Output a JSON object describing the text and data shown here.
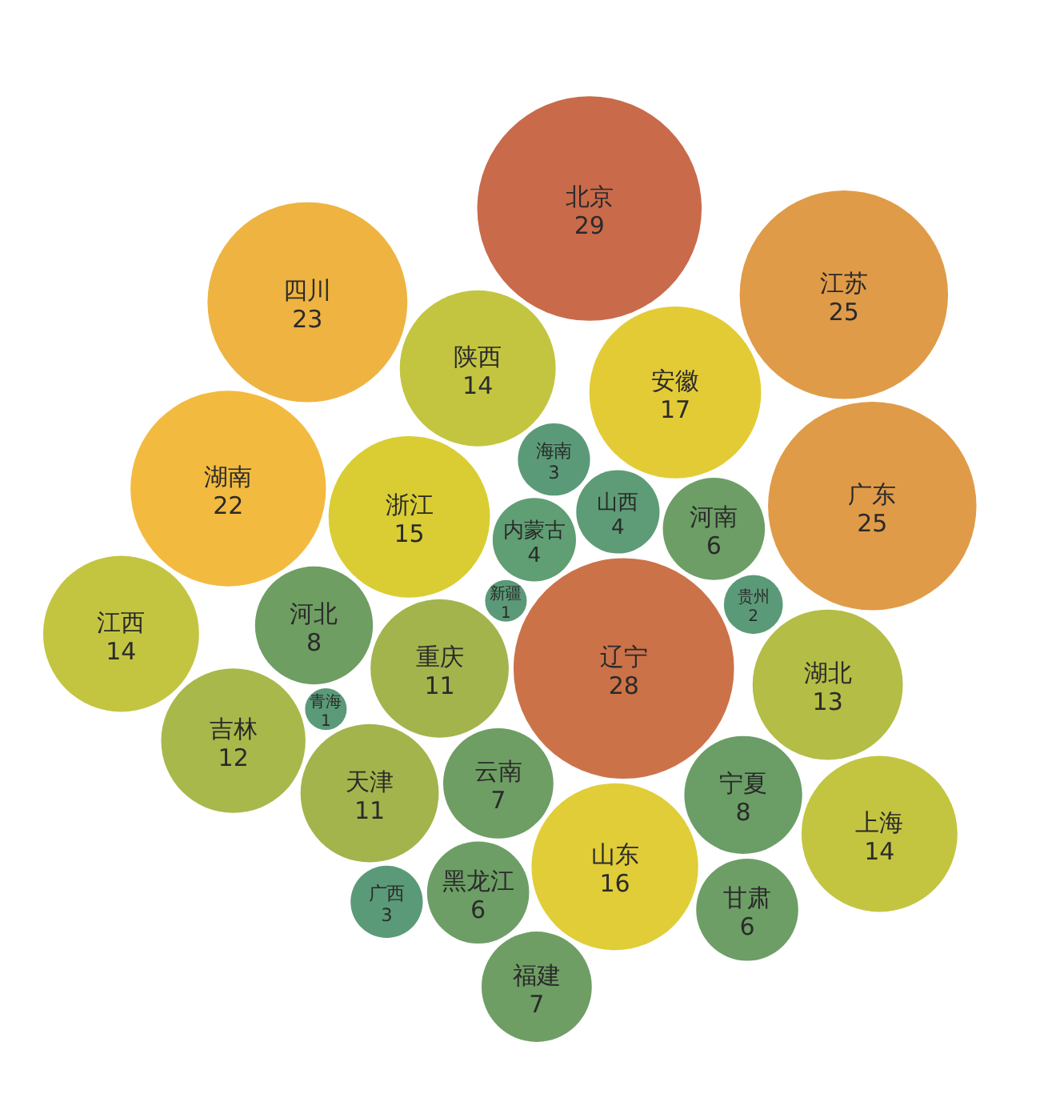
{
  "chart_data": {
    "type": "other",
    "data_labels": true,
    "categories": [
      "重庆",
      "辽宁",
      "云南",
      "新疆",
      "山东",
      "内蒙古",
      "浙江",
      "山西",
      "天津",
      "宁夏",
      "河南",
      "海南",
      "河北",
      "黑龙江",
      "陕西",
      "青海",
      "贵州",
      "广西",
      "湖北",
      "安徽",
      "北京",
      "广东",
      "甘肃",
      "福建",
      "湖南",
      "吉林",
      "江西",
      "江苏",
      "上海",
      "四川"
    ],
    "values": [
      11,
      28,
      7,
      1,
      16,
      4,
      15,
      4,
      11,
      8,
      6,
      3,
      8,
      6,
      14,
      1,
      2,
      3,
      13,
      17,
      29,
      25,
      6,
      7,
      22,
      12,
      14,
      25,
      14,
      23
    ],
    "colors": [
      "#a3b44c",
      "#cc7249",
      "#6e9e64",
      "#5b9a78",
      "#e0cd37",
      "#609e74",
      "#d9cd33",
      "#5d9c76",
      "#a3b44c",
      "#6b9d66",
      "#6d9e66",
      "#5b9a78",
      "#6e9e62",
      "#6d9e66",
      "#c3c541",
      "#5b9a78",
      "#5b9a78",
      "#5b9a78",
      "#b4bd45",
      "#e3cb36",
      "#c96a4b",
      "#e09b48",
      "#6d9e66",
      "#6e9e64",
      "#f3ba40",
      "#a9b84a",
      "#c3c541",
      "#e09b48",
      "#c3c541",
      "#eeb341"
    ]
  }
}
